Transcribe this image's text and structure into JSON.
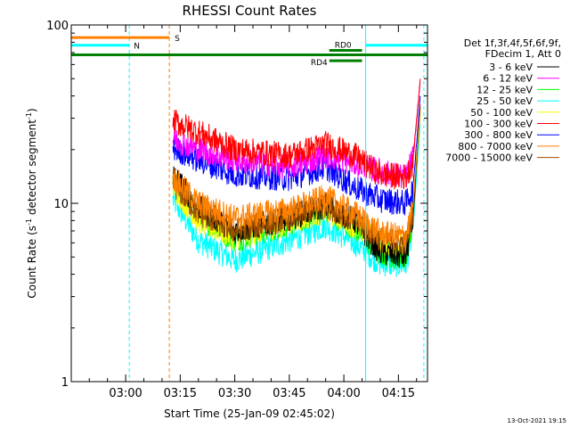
{
  "chart_data": {
    "type": "line",
    "title": "RHESSI Count Rates",
    "xlabel": "Start Time (25-Jan-09 02:45:02)",
    "ylabel_parts": [
      "Count Rate (s",
      "-1",
      " detector segment",
      "-1",
      ")"
    ],
    "y_scale": "log",
    "ylim": [
      1,
      100
    ],
    "xlim": [
      "02:45:02",
      "04:23:00"
    ],
    "y_ticks": [
      1,
      10,
      100
    ],
    "y_tick_labels": [
      "1",
      "10",
      "100"
    ],
    "x_ticks": [
      "03:00",
      "03:15",
      "03:30",
      "03:45",
      "04:00",
      "04:15"
    ],
    "x_tick_labels": [
      "03:00",
      "03:15",
      "03:30",
      "03:45",
      "04:00",
      "04:15"
    ],
    "legend_header": [
      "Det 1f,3f,4f,5f,6f,9f,",
      "FDecim 1, Att 0"
    ],
    "legend_position": "right",
    "series": [
      {
        "name": "3 - 6 keV",
        "color": "#000000",
        "points": [
          [
            "03:13",
            14.5
          ],
          [
            "03:20",
            9.5
          ],
          [
            "03:30",
            7.0
          ],
          [
            "03:45",
            8.3
          ],
          [
            "03:55",
            9.7
          ],
          [
            "04:03",
            8.0
          ],
          [
            "04:10",
            5.3
          ],
          [
            "04:17",
            5.0
          ],
          [
            "04:19",
            8.0
          ],
          [
            "04:21",
            35.0
          ]
        ]
      },
      {
        "name": "6 - 12 keV",
        "color": "#ff00ff",
        "points": [
          [
            "03:13",
            23.0
          ],
          [
            "03:20",
            20.0
          ],
          [
            "03:30",
            17.5
          ],
          [
            "03:45",
            16.0
          ],
          [
            "03:55",
            18.5
          ],
          [
            "04:03",
            16.8
          ],
          [
            "04:10",
            15.0
          ],
          [
            "04:17",
            14.0
          ],
          [
            "04:19",
            18.0
          ],
          [
            "04:21",
            48.0
          ]
        ]
      },
      {
        "name": "12 - 25 keV",
        "color": "#00ff00",
        "points": [
          [
            "03:13",
            13.0
          ],
          [
            "03:20",
            8.5
          ],
          [
            "03:30",
            6.3
          ],
          [
            "03:45",
            7.7
          ],
          [
            "03:55",
            9.2
          ],
          [
            "04:03",
            7.3
          ],
          [
            "04:10",
            5.2
          ],
          [
            "04:17",
            5.0
          ],
          [
            "04:19",
            8.0
          ],
          [
            "04:21",
            33.0
          ]
        ]
      },
      {
        "name": "25 - 50 keV",
        "color": "#00ffff",
        "points": [
          [
            "03:13",
            10.5
          ],
          [
            "03:20",
            6.2
          ],
          [
            "03:30",
            4.8
          ],
          [
            "03:45",
            6.2
          ],
          [
            "03:55",
            7.5
          ],
          [
            "04:03",
            6.0
          ],
          [
            "04:10",
            4.6
          ],
          [
            "04:17",
            4.5
          ],
          [
            "04:19",
            7.0
          ],
          [
            "04:21",
            28.0
          ]
        ]
      },
      {
        "name": "50 - 100 keV",
        "color": "#ffff00",
        "points": [
          [
            "03:13",
            12.5
          ],
          [
            "03:20",
            8.0
          ],
          [
            "03:30",
            6.5
          ],
          [
            "03:45",
            7.8
          ],
          [
            "03:55",
            9.2
          ],
          [
            "04:03",
            7.5
          ],
          [
            "04:10",
            6.0
          ],
          [
            "04:17",
            5.8
          ],
          [
            "04:19",
            8.5
          ],
          [
            "04:21",
            32.0
          ]
        ]
      },
      {
        "name": "100 - 300 keV",
        "color": "#ff0000",
        "points": [
          [
            "03:13",
            29.0
          ],
          [
            "03:20",
            25.0
          ],
          [
            "03:30",
            20.0
          ],
          [
            "03:45",
            18.5
          ],
          [
            "03:55",
            21.5
          ],
          [
            "04:03",
            18.5
          ],
          [
            "04:10",
            14.5
          ],
          [
            "04:17",
            14.0
          ],
          [
            "04:19",
            17.0
          ],
          [
            "04:21",
            50.0
          ]
        ]
      },
      {
        "name": "300 - 800 keV",
        "color": "#0000ff",
        "points": [
          [
            "03:13",
            20.5
          ],
          [
            "03:20",
            17.5
          ],
          [
            "03:30",
            14.5
          ],
          [
            "03:45",
            13.8
          ],
          [
            "03:55",
            16.0
          ],
          [
            "04:03",
            12.3
          ],
          [
            "04:10",
            10.5
          ],
          [
            "04:17",
            10.0
          ],
          [
            "04:19",
            12.0
          ],
          [
            "04:21",
            40.0
          ]
        ]
      },
      {
        "name": "800 - 7000 keV",
        "color": "#ff8000",
        "points": [
          [
            "03:13",
            14.0
          ],
          [
            "03:20",
            10.0
          ],
          [
            "03:30",
            8.3
          ],
          [
            "03:45",
            9.2
          ],
          [
            "03:55",
            10.8
          ],
          [
            "04:03",
            8.8
          ],
          [
            "04:10",
            6.8
          ],
          [
            "04:17",
            6.5
          ],
          [
            "04:19",
            9.5
          ],
          [
            "04:21",
            36.0
          ]
        ]
      },
      {
        "name": "7000 - 15000 keV",
        "color": "#a05000",
        "points": [
          [
            "03:13",
            13.0
          ],
          [
            "03:20",
            8.8
          ],
          [
            "03:30",
            7.0
          ],
          [
            "03:45",
            8.3
          ],
          [
            "03:55",
            9.8
          ],
          [
            "04:03",
            8.0
          ],
          [
            "04:10",
            6.3
          ],
          [
            "04:17",
            6.0
          ],
          [
            "04:19",
            9.0
          ],
          [
            "04:21",
            34.0
          ]
        ]
      }
    ],
    "flags": [
      {
        "label": "S",
        "color": "#ff8000",
        "y": 85,
        "start": "02:45:02",
        "end": "03:12"
      },
      {
        "label": "N",
        "color": "#00ffff",
        "y": 77,
        "start": "02:45:02",
        "end": "03:01",
        "start2": "04:06",
        "end2": "04:23"
      },
      {
        "label": "RD0",
        "color": "#008000",
        "y": 72,
        "start": "03:56",
        "end": "04:05"
      },
      {
        "label": "RD4",
        "color": "#008000",
        "y": 63,
        "start": "03:56",
        "end": "04:05"
      },
      {
        "label": "",
        "color": "#008000",
        "y": 68,
        "start": "02:45:02",
        "end": "04:23"
      }
    ],
    "vertical_markers": [
      {
        "time": "03:01",
        "color": "#00ffff",
        "style": "dashed"
      },
      {
        "time": "03:12",
        "color": "#ff8000",
        "style": "dashed"
      },
      {
        "time": "04:06",
        "color": "#00ffff",
        "style": "solid"
      },
      {
        "time": "04:22",
        "color": "#00ffff",
        "style": "dashed"
      }
    ],
    "footer_date": "13-Oct-2021 19:15"
  }
}
